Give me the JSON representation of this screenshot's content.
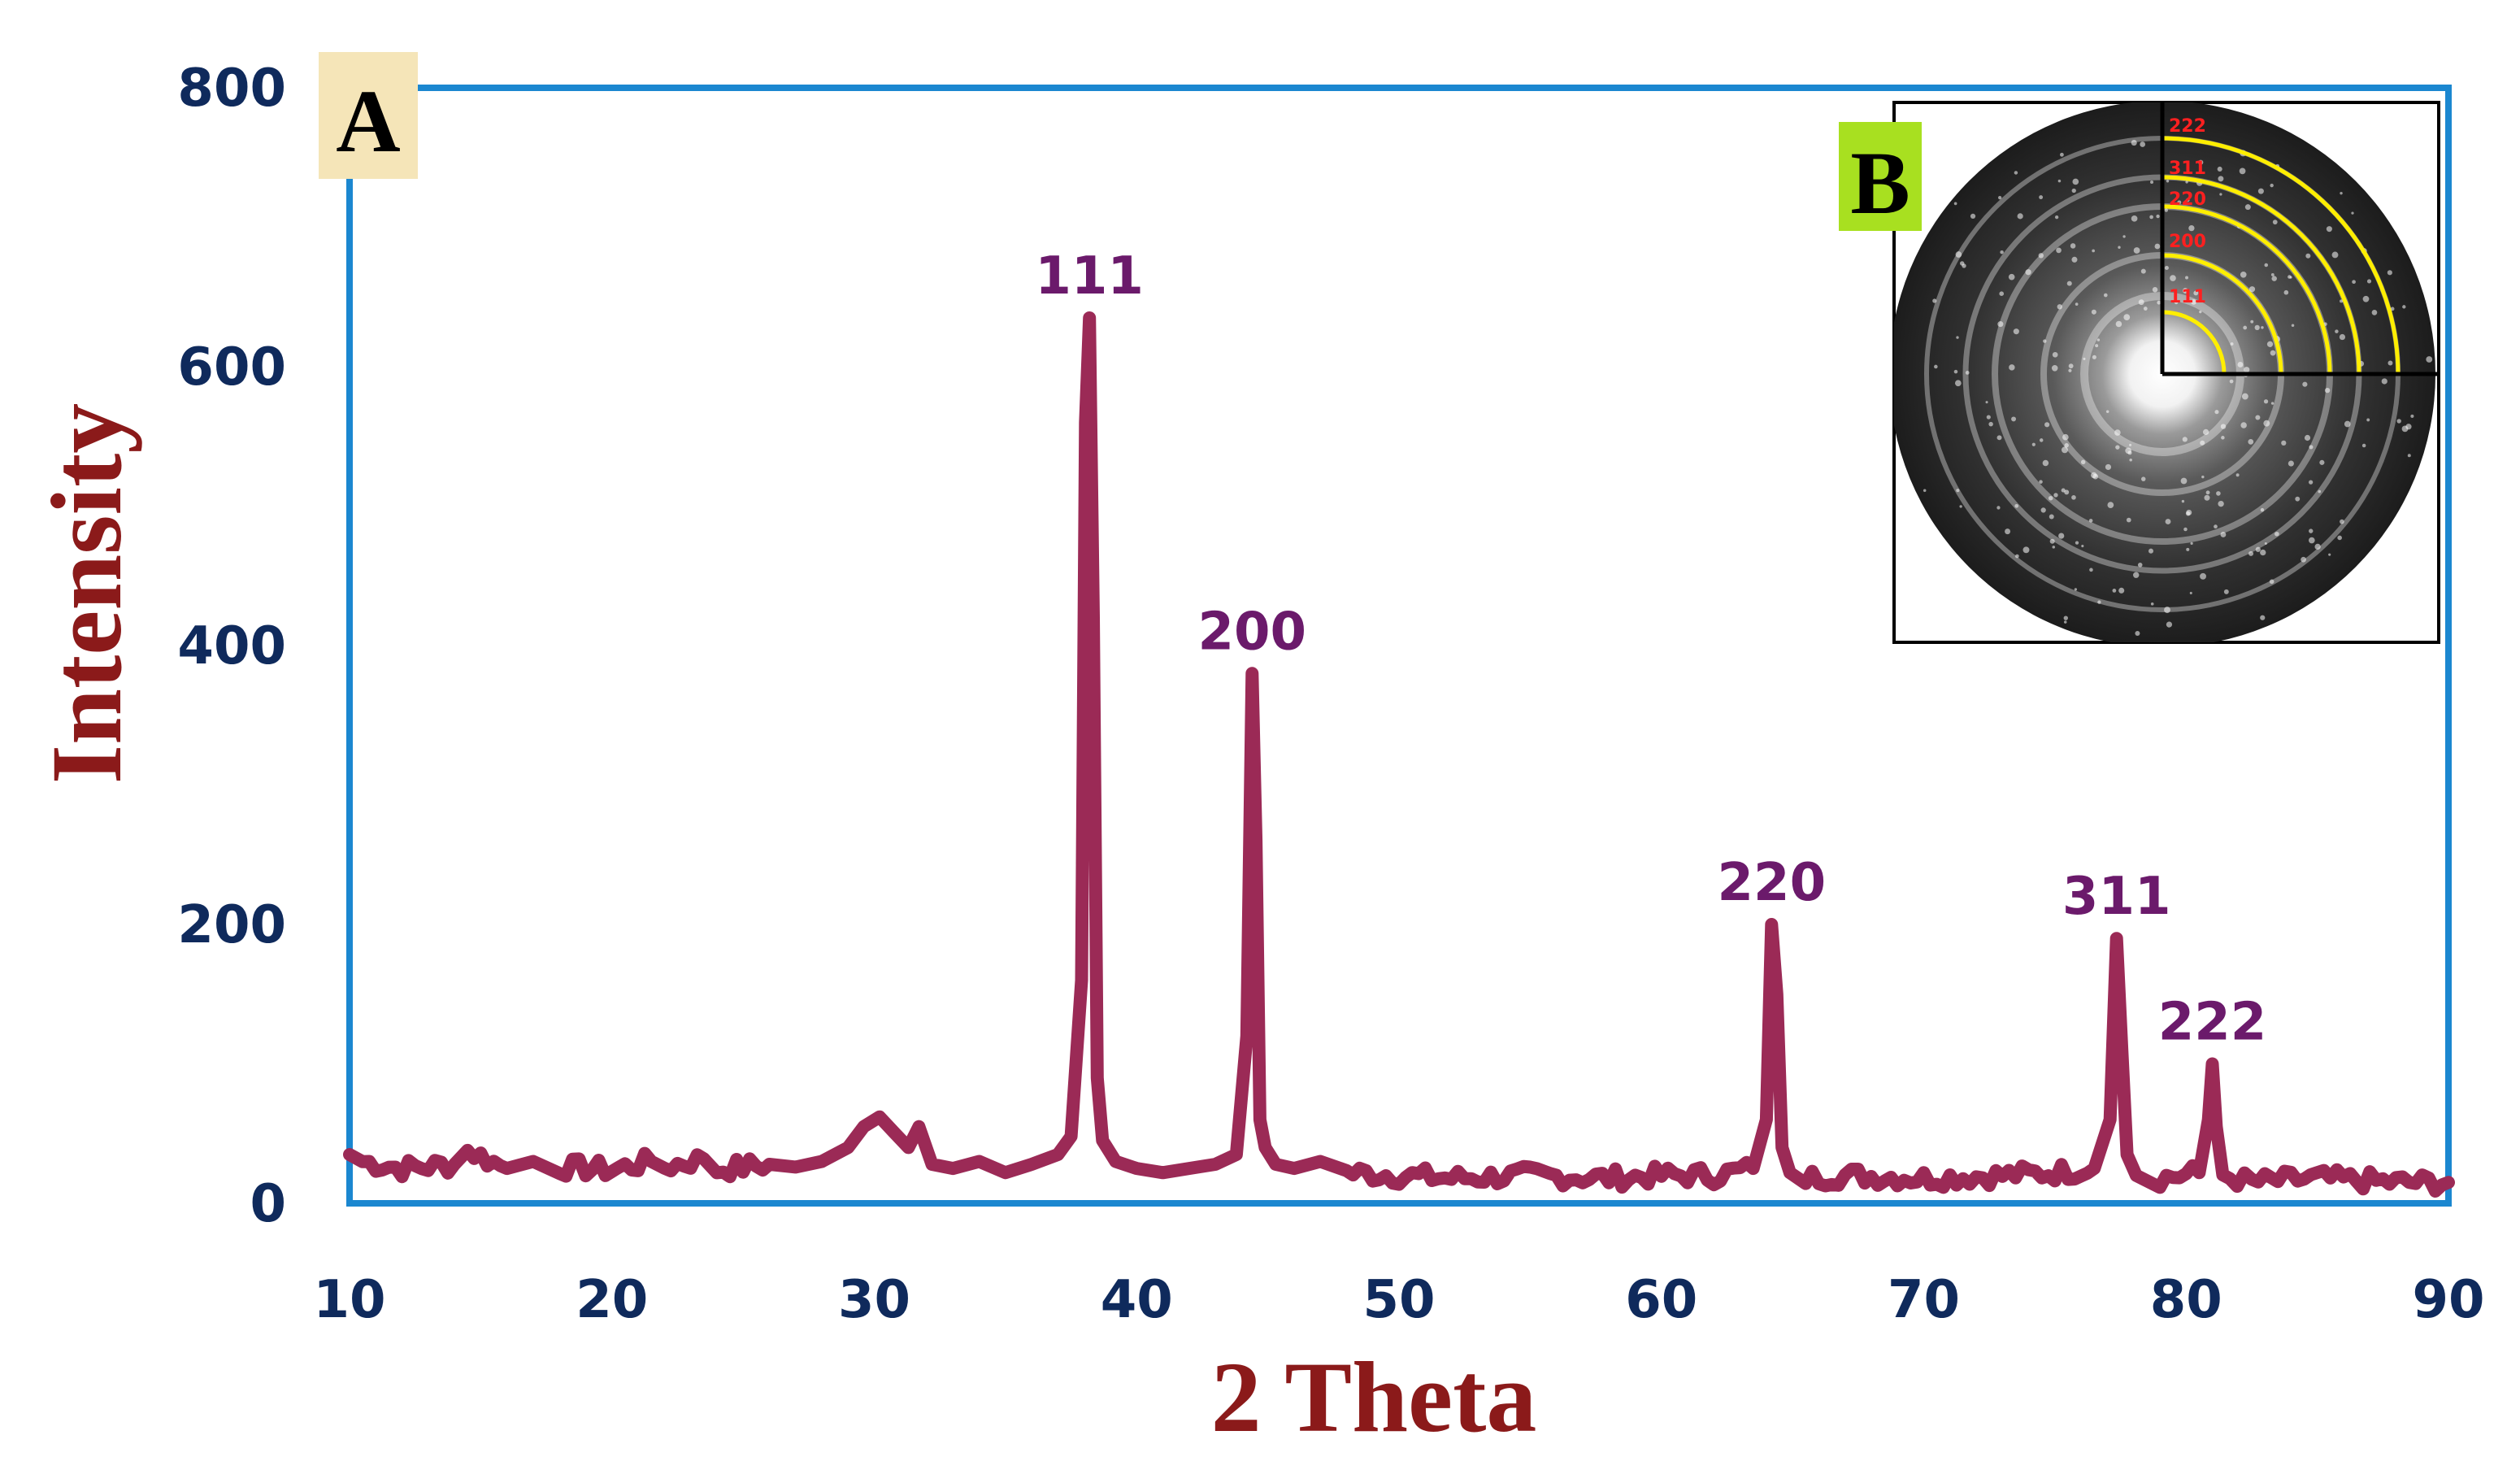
{
  "chart_data": {
    "type": "line",
    "xlabel": "2 Theta",
    "ylabel": "Intensity",
    "xlim": [
      10,
      90
    ],
    "ylim": [
      0,
      800
    ],
    "x_ticks": [
      "10",
      "20",
      "30",
      "40",
      "50",
      "60",
      "70",
      "80",
      "90"
    ],
    "y_ticks": [
      "0",
      "200",
      "400",
      "600",
      "800"
    ],
    "grid": false,
    "legend": "none",
    "line_color": "#9b2a56",
    "frame_color": "#1b87d0",
    "series": [
      {
        "x": [
          10,
          10.5,
          12,
          14,
          14.5,
          16,
          17,
          18,
          20,
          21.5,
          22,
          23.5,
          24,
          26,
          27,
          28,
          29,
          29.6,
          30.2,
          30.8,
          31.3,
          31.7,
          32.2,
          33,
          34,
          35,
          36,
          37,
          37.5,
          37.9,
          38.05,
          38.2,
          38.35,
          38.5,
          38.7,
          39.2,
          40,
          41,
          42,
          43,
          43.8,
          44.2,
          44.4,
          44.55,
          44.7,
          44.9,
          45.3,
          46,
          47,
          48,
          50,
          52,
          55,
          58,
          60,
          62,
          63.5,
          64.0,
          64.2,
          64.4,
          64.6,
          64.9,
          65.5,
          67,
          70,
          73,
          75,
          76.5,
          77.1,
          77.35,
          77.55,
          77.75,
          78.1,
          79,
          80.5,
          80.85,
          81.0,
          81.15,
          81.4,
          82.5,
          85,
          88,
          90
        ],
        "y": [
          35,
          30,
          25,
          28,
          38,
          25,
          30,
          26,
          24,
          30,
          26,
          32,
          24,
          28,
          26,
          30,
          40,
          55,
          62,
          50,
          40,
          55,
          28,
          25,
          30,
          22,
          28,
          35,
          48,
          160,
          560,
          635,
          420,
          90,
          45,
          30,
          25,
          22,
          25,
          28,
          35,
          120,
          380,
          260,
          60,
          40,
          28,
          25,
          30,
          22,
          20,
          18,
          20,
          18,
          20,
          20,
          25,
          60,
          200,
          150,
          40,
          22,
          18,
          20,
          18,
          20,
          22,
          25,
          60,
          190,
          110,
          35,
          20,
          18,
          22,
          60,
          100,
          55,
          20,
          15,
          18,
          15,
          15
        ]
      }
    ],
    "annotations": [
      {
        "text": "111",
        "x": 38.2,
        "y": 635
      },
      {
        "text": "200",
        "x": 44.4,
        "y": 380
      },
      {
        "text": "220",
        "x": 64.2,
        "y": 200
      },
      {
        "text": "311",
        "x": 77.35,
        "y": 190
      },
      {
        "text": "222",
        "x": 81.0,
        "y": 100
      }
    ]
  },
  "panels": {
    "a_label": "A",
    "b_label": "B",
    "a_label_bg": "#f5e5b8",
    "b_label_bg": "#a8e020"
  },
  "inset": {
    "ring_labels": [
      "222",
      "311",
      "220",
      "200",
      "111"
    ],
    "ring_color": "#ffee00"
  }
}
